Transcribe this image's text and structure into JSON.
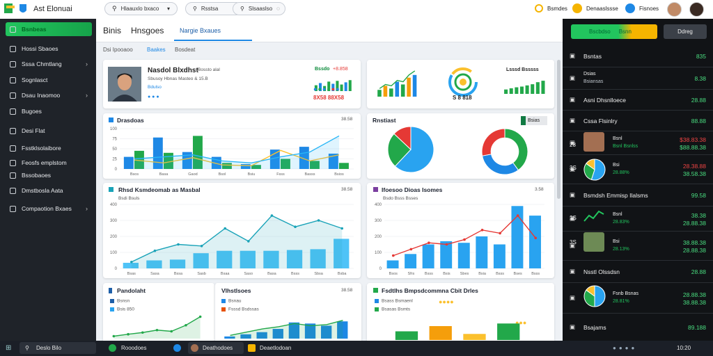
{
  "header": {
    "title": "Ast Elonuai",
    "search": [
      "Hlaauxlo bxaco",
      "Rsstsa",
      "Slsaaslso"
    ],
    "actions": [
      "Bsmdes",
      "Denaaslssse",
      "Fisnoes"
    ]
  },
  "sidebar": {
    "items": [
      "Bsnbeas",
      "Hossi Sbaoes",
      "Sssa Chmtlang",
      "Sognlasct",
      "Dsau Inaomoo",
      "Bugoes",
      "Desi Flat",
      "Fsstklsolaibore",
      "Feosfs emplstom",
      "Bssobaoes",
      "Dmstbosla Aata",
      "Compaotion Bxaes"
    ]
  },
  "tabs": [
    "Binis",
    "Hnsgoes",
    "Nargie Bxaues"
  ],
  "breadcrumb": [
    "Dsi Ipooaoo",
    "Baakes",
    "Bosdeat"
  ],
  "profile": {
    "name": "Nasdol Blxdhst",
    "tag": "Bossto alal",
    "line1": "Sbusoy Hbnas Masteo & 15.B",
    "line2": "Bdulso",
    "stat_label": "Bssdo",
    "stat_change": "+8.858",
    "stat_value": "8X58 88X58"
  },
  "summary": {
    "gauge_label": "S 8 818",
    "bars_title": "Lsssd Bsssss"
  },
  "cards": {
    "bar1": {
      "title": "Drasdoas",
      "value": "38.58"
    },
    "pies": {
      "title": "Rnstiast",
      "legend": "Bsias"
    },
    "line1": {
      "title": "Rhsd Ksmdeomab as Masbal",
      "value": "38.58",
      "sub": "Bsdi Bsuls"
    },
    "line2": {
      "title": "Ifoesoo Dioas Isomes",
      "value": "3.58",
      "sub": "Bsdo Bsss Bsses"
    },
    "p1": {
      "title": "Pandolaht",
      "legend": [
        "Bsnsn",
        "Bsis 850"
      ]
    },
    "p2": {
      "title": "Vlhstlsoes",
      "value": "38.58",
      "legend": [
        "Bsnau",
        "Fsssd Bsdssas"
      ]
    },
    "p3": {
      "title": "Fsdtlhs Bmpsdcommna Cbit Drles",
      "legend": [
        "Bsass Bsmaenl",
        "Bsasas Bsmts"
      ]
    }
  },
  "charts": {
    "profile_bars": {
      "type": "bar",
      "ylim": [
        0,
        100
      ],
      "series": [
        {
          "type": "bar",
          "color": "#22a84a",
          "colors": [
            "#22a84a",
            "#1e88e5",
            "#22a84a",
            "#22a84a",
            "#1e88e5",
            "#22a84a",
            "#22a84a",
            "#1e88e5",
            "#22a84a"
          ],
          "values": [
            40,
            55,
            35,
            65,
            50,
            70,
            45,
            60,
            75
          ]
        }
      ]
    },
    "growth": {
      "type": "bar",
      "ylim": [
        0,
        100
      ],
      "series": [
        {
          "type": "bar",
          "color": "#22a84a",
          "colors": [
            "#22a84a",
            "#f59e0b",
            "#22a84a",
            "#1e88e5",
            "#22a84a",
            "#f59e0b",
            "#1e88e5"
          ],
          "values": [
            25,
            40,
            30,
            55,
            45,
            70,
            80
          ]
        },
        {
          "type": "line",
          "color": "#22a84a",
          "values": [
            30,
            45,
            40,
            60,
            55,
            80,
            95
          ]
        }
      ]
    },
    "summary_bars": {
      "type": "bar",
      "ylim": [
        0,
        100
      ],
      "series": [
        {
          "type": "bar",
          "color": "#22a84a",
          "values": [
            30,
            38,
            45,
            50,
            58,
            66,
            80,
            90
          ]
        }
      ]
    },
    "bar1": {
      "type": "bar",
      "ylim": [
        0,
        100
      ],
      "yticks": [
        0,
        25,
        50,
        75,
        100
      ],
      "grid": true,
      "categories": [
        "Bsos",
        "Basa",
        "Gaod",
        "Bsol",
        "Bsiu",
        "Fsss",
        "Basss",
        "Bsios"
      ],
      "series": [
        {
          "type": "bar",
          "color": "#1e88e5",
          "values": [
            30,
            78,
            42,
            30,
            12,
            48,
            55,
            38
          ]
        },
        {
          "type": "bar",
          "color": "#22a84a",
          "values": [
            45,
            40,
            82,
            15,
            10,
            25,
            20,
            15
          ]
        },
        {
          "type": "line",
          "color": "#fbc02d",
          "values": [
            22,
            15,
            28,
            10,
            8,
            46,
            20,
            35
          ]
        },
        {
          "type": "line",
          "color": "#29b6f6",
          "area": true,
          "values": [
            25,
            30,
            35,
            20,
            15,
            30,
            42,
            82
          ]
        }
      ]
    },
    "pie": {
      "type": "pie",
      "colors": [
        "#29a3f0",
        "#22a84a",
        "#e53935"
      ],
      "values": [
        62,
        25,
        13
      ]
    },
    "donut": {
      "type": "donut",
      "colors": [
        "#22a84a",
        "#1e88e5",
        "#e53935"
      ],
      "values": [
        40,
        32,
        28
      ]
    },
    "line1": {
      "type": "bar",
      "ylim": [
        0,
        400
      ],
      "yticks": [
        0,
        100,
        200,
        300,
        400
      ],
      "grid": true,
      "categories": [
        "Bsas",
        "Sasa",
        "Bssa",
        "Sasb",
        "Bsaa",
        "Saso",
        "Basa",
        "Bsss",
        "Sbsa",
        "Bsba"
      ],
      "series": [
        {
          "type": "bar",
          "color": "#4fc3f7",
          "values": [
            35,
            50,
            55,
            95,
            110,
            110,
            110,
            115,
            120,
            185
          ]
        },
        {
          "type": "line",
          "color": "#1aa3b8",
          "area": true,
          "dots": true,
          "values": [
            40,
            110,
            150,
            140,
            250,
            170,
            330,
            260,
            300,
            250
          ]
        }
      ]
    },
    "line2": {
      "type": "bar",
      "ylim": [
        0,
        400
      ],
      "yticks": [
        0,
        100,
        200,
        300,
        400
      ],
      "grid": true,
      "categories": [
        "Bsos",
        "Sfrs",
        "Bsss",
        "Bsis",
        "Sbes",
        "Bsia",
        "Bsss",
        "Bses",
        "Bsss"
      ],
      "series": [
        {
          "type": "bar",
          "color": "#29a3f0",
          "values": [
            50,
            90,
            150,
            170,
            160,
            200,
            150,
            390,
            330
          ]
        },
        {
          "type": "line",
          "color": "#e53935",
          "dots": true,
          "values": [
            80,
            120,
            160,
            150,
            180,
            240,
            220,
            330,
            190
          ]
        }
      ]
    },
    "p1": {
      "type": "bar",
      "ylim": [
        0,
        100
      ],
      "series": [
        {
          "type": "line",
          "color": "#22a84a",
          "area": true,
          "dots": true,
          "values": [
            10,
            18,
            25,
            35,
            30,
            55,
            90
          ]
        }
      ]
    },
    "p2": {
      "type": "bar",
      "ylim": [
        0,
        100
      ],
      "series": [
        {
          "type": "bar",
          "color": "#1e88e5",
          "values": [
            10,
            20,
            30,
            45,
            75,
            70,
            60,
            80
          ]
        },
        {
          "type": "line",
          "color": "#22a84a",
          "area": true,
          "values": [
            15,
            30,
            45,
            55,
            70,
            60,
            65,
            85
          ]
        }
      ]
    },
    "p3": {
      "type": "bar",
      "ylim": [
        0,
        100
      ],
      "series": [
        {
          "type": "bar",
          "color": "#22a84a",
          "colors": [
            "#22a84a",
            "#f59e0b",
            "#fbc02d",
            "#22a84a"
          ],
          "values": [
            50,
            80,
            35,
            95
          ]
        }
      ]
    },
    "rp1": {
      "type": "pie",
      "colors": [
        "#29a3f0",
        "#22a84a",
        "#fbc02d"
      ],
      "values": [
        55,
        30,
        15
      ]
    },
    "rp2": {
      "type": "pie",
      "colors": [
        "#29a3f0",
        "#22a84a",
        "#fbc02d"
      ],
      "values": [
        50,
        35,
        15
      ]
    }
  },
  "right": {
    "buttons": [
      "Bscbdso",
      "Bsnn",
      "Ddreg"
    ],
    "rows": [
      {
        "label": "Bsntas",
        "value": "835"
      },
      {
        "label": "Dsias",
        "sub": "Bsiansas",
        "value": "8.38"
      },
      {
        "label": "Asni Dhsnlloece",
        "value": "28.88"
      },
      {
        "label": "Cssa Flsinlry",
        "value": "88.88"
      },
      {
        "label": "Bsnl",
        "sub": "Bsnl Bsnlss",
        "value": "$38.83.38",
        "value2": "$88.88.38"
      },
      {
        "label": "Bsi",
        "sub": "28.88%",
        "value": "28.38.88",
        "value2": "38.58.38"
      },
      {
        "label": "Bsmdsh Emmisp Ilalsms",
        "value": "99.58"
      },
      {
        "label": "Bsnl",
        "sub": "28.83%",
        "value": "38.38",
        "value2": "28.88.38"
      },
      {
        "label": "Bsi",
        "sub": "28.13%",
        "value": "38.88.38",
        "value2": "28.88.38"
      },
      {
        "label": "Nsstl Olssdsn",
        "value": "28.88"
      },
      {
        "label": "Fsnb Bsnas",
        "sub": "28.81%",
        "value": "28.88.38",
        "value2": "38.88.38"
      },
      {
        "label": "Bsajams",
        "value": "89.188"
      }
    ],
    "nums": [
      "28",
      "3S",
      "2S",
      "3S"
    ]
  },
  "taskbar": {
    "search": "Deslo Bilo",
    "apps": [
      "Rooodoes",
      "Deathodoes",
      "Deaetlodoan"
    ],
    "clock": "10:20"
  }
}
